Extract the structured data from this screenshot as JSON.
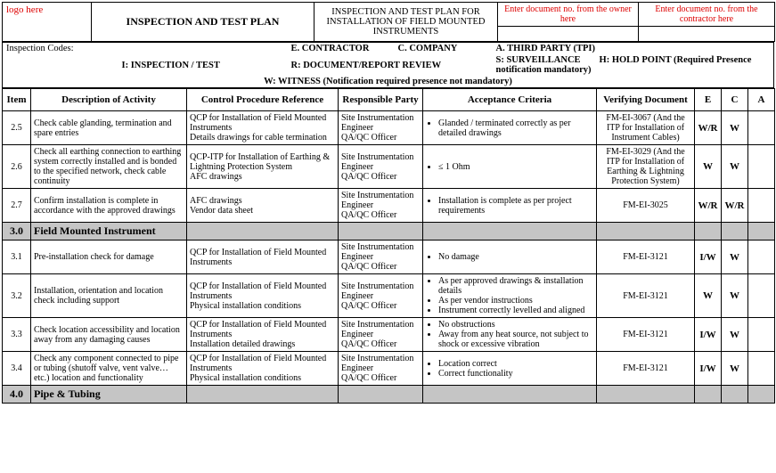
{
  "header": {
    "logo_text": "logo here",
    "main_title": "INSPECTION AND TEST PLAN",
    "subtitle_line1": "INSPECTION AND TEST PLAN FOR",
    "subtitle_line2": "INSTALLATION OF FIELD MOUNTED INSTRUMENTS",
    "owner_doc_note": "Enter document no. from the owner here",
    "contractor_doc_note": "Enter document no. from the contractor here"
  },
  "codes": {
    "label": "Inspection Codes:",
    "e": "E. CONTRACTOR",
    "c": "C. COMPANY",
    "a": "A. THIRD PARTY (TPI)",
    "i": "I: INSPECTION / TEST",
    "r": "R: DOCUMENT/REPORT REVIEW",
    "s": "S: SURVEILLANCE",
    "h": "H: HOLD POINT (Required Presence notification mandatory)",
    "w": "W: WITNESS (Notification required presence not mandatory)"
  },
  "columns": {
    "item": "Item",
    "desc": "Description of Activity",
    "ctrl": "Control Procedure Reference",
    "resp": "Responsible Party",
    "acc": "Acceptance Criteria",
    "vdoc": "Verifying Document",
    "e": "E",
    "c": "C",
    "a": "A"
  },
  "rows": [
    {
      "type": "data",
      "item": "2.5",
      "desc": "Check cable glanding, termination and spare entries",
      "ctrl": "QCP for Installation of Field Mounted Instruments\nDetails drawings for cable termination",
      "resp": "Site Instrumentation Engineer\nQA/QC Officer",
      "acc": [
        "Glanded / terminated correctly as per detailed drawings"
      ],
      "vdoc": "FM-EI-3067 (And the ITP for Installation of Instrument Cables)",
      "e": "W/R",
      "c": "W",
      "a": ""
    },
    {
      "type": "data",
      "item": "2.6",
      "desc": "Check all earthing connection to earthing system correctly installed and is bonded to the specified network, check cable continuity",
      "ctrl": "QCP-ITP for Installation of Earthing & Lightning Protection System\nAFC drawings",
      "resp": "Site Instrumentation Engineer\nQA/QC Officer",
      "acc": [
        "≤ 1 Ohm"
      ],
      "vdoc": "FM-EI-3029 (And the ITP for Installation of Earthing & Lightning Protection System)",
      "e": "W",
      "c": "W",
      "a": ""
    },
    {
      "type": "data",
      "item": "2.7",
      "desc": "Confirm installation is complete in accordance with the approved drawings",
      "ctrl": "AFC drawings\nVendor data sheet",
      "resp": "Site Instrumentation Engineer\nQA/QC Officer",
      "acc": [
        "Installation is complete as per project requirements"
      ],
      "vdoc": "FM-EI-3025",
      "e": "W/R",
      "c": "W/R",
      "a": ""
    },
    {
      "type": "section",
      "item": "3.0",
      "desc": "Field Mounted Instrument"
    },
    {
      "type": "data",
      "item": "3.1",
      "desc": "Pre-installation check for damage",
      "ctrl": "QCP for Installation of Field Mounted Instruments",
      "resp": "Site Instrumentation Engineer\nQA/QC Officer",
      "acc": [
        "No damage"
      ],
      "vdoc": "FM-EI-3121",
      "e": "I/W",
      "c": "W",
      "a": ""
    },
    {
      "type": "data",
      "item": "3.2",
      "desc": "Installation, orientation and location check including support",
      "ctrl": "QCP for Installation of Field Mounted Instruments\nPhysical installation conditions",
      "resp": "Site Instrumentation Engineer\nQA/QC Officer",
      "acc": [
        "As per approved drawings & installation details",
        "As per vendor instructions",
        "Instrument correctly levelled and aligned"
      ],
      "vdoc": "FM-EI-3121",
      "e": "W",
      "c": "W",
      "a": ""
    },
    {
      "type": "data",
      "item": "3.3",
      "desc": "Check location accessibility and location away from any damaging causes",
      "ctrl": "QCP for Installation of Field Mounted Instruments\nInstallation detailed drawings",
      "resp": "Site Instrumentation Engineer\nQA/QC Officer",
      "acc": [
        "No obstructions",
        "Away from any heat source, not subject to shock or excessive vibration"
      ],
      "vdoc": "FM-EI-3121",
      "e": "I/W",
      "c": "W",
      "a": ""
    },
    {
      "type": "data",
      "item": "3.4",
      "desc": "Check any component connected to pipe or tubing (shutoff valve, vent valve…etc.) location and functionality",
      "ctrl": "QCP for Installation of Field Mounted Instruments\nPhysical installation conditions",
      "resp": "Site Instrumentation Engineer\nQA/QC Officer",
      "acc": [
        "Location correct",
        "Correct functionality"
      ],
      "vdoc": "FM-EI-3121",
      "e": "I/W",
      "c": "W",
      "a": ""
    },
    {
      "type": "section",
      "item": "4.0",
      "desc": "Pipe & Tubing"
    }
  ]
}
